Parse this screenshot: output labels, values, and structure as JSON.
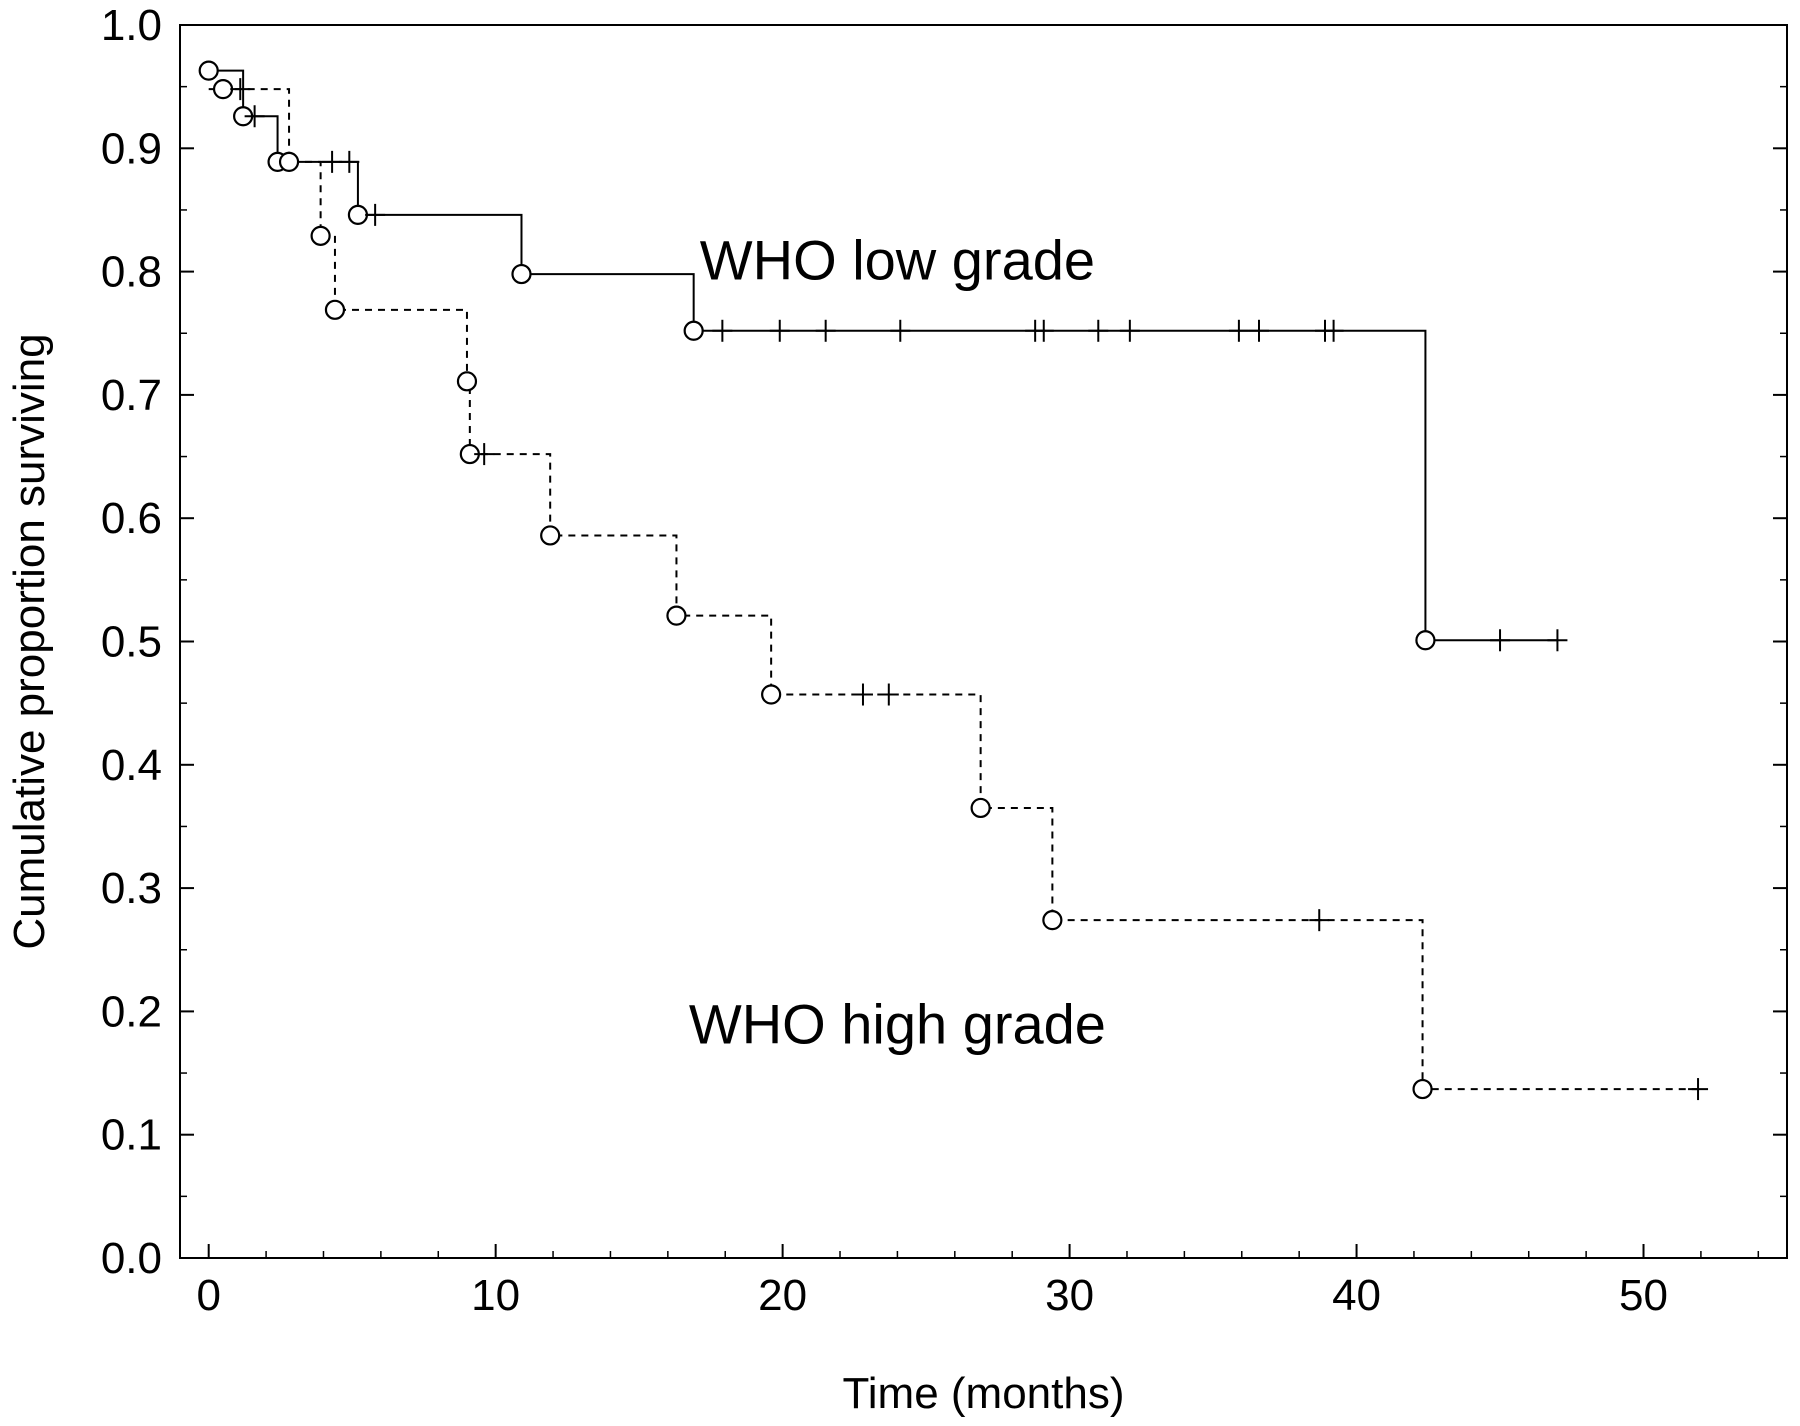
{
  "chart_data": {
    "type": "line",
    "step": true,
    "xlabel": "Time (months)",
    "ylabel": "Cumulative proportion surviving",
    "xlim": [
      -1,
      55
    ],
    "ylim": [
      0.0,
      1.0
    ],
    "x_ticks": [
      0,
      10,
      20,
      30,
      40,
      50
    ],
    "x_tick_labels": [
      "0",
      "10",
      "20",
      "30",
      "40",
      "50"
    ],
    "x_minor_step": 2,
    "y_ticks": [
      0.0,
      0.1,
      0.2,
      0.3,
      0.4,
      0.5,
      0.6,
      0.7,
      0.8,
      0.9,
      1.0
    ],
    "y_tick_labels": [
      "0.0",
      "0.1",
      "0.2",
      "0.3",
      "0.4",
      "0.5",
      "0.6",
      "0.7",
      "0.8",
      "0.9",
      "1.0"
    ],
    "y_minor_step": 0.05,
    "grid": false,
    "annotations": [
      {
        "text": "WHO low grade",
        "x": 24,
        "y": 0.81
      },
      {
        "text": "WHO high grade",
        "x": 24,
        "y": 0.19
      }
    ],
    "series": [
      {
        "line_style": "solid",
        "start_y": 0.963,
        "steps": [
          {
            "x": 1.2,
            "y": 0.926
          },
          {
            "x": 2.4,
            "y": 0.889
          },
          {
            "x": 5.2,
            "y": 0.846
          },
          {
            "x": 10.9,
            "y": 0.798
          },
          {
            "x": 16.9,
            "y": 0.752
          },
          {
            "x": 42.4,
            "y": 0.501
          }
        ],
        "end_x": 47.0,
        "events": [
          {
            "x": 0.0,
            "y": 0.963
          },
          {
            "x": 1.2,
            "y": 0.926
          },
          {
            "x": 2.4,
            "y": 0.889
          },
          {
            "x": 5.2,
            "y": 0.846
          },
          {
            "x": 10.9,
            "y": 0.798
          },
          {
            "x": 16.9,
            "y": 0.752
          },
          {
            "x": 42.4,
            "y": 0.501
          }
        ],
        "censored": [
          {
            "x": 1.6,
            "y": 0.926
          },
          {
            "x": 4.3,
            "y": 0.889
          },
          {
            "x": 4.9,
            "y": 0.889
          },
          {
            "x": 5.8,
            "y": 0.846
          },
          {
            "x": 17.9,
            "y": 0.752
          },
          {
            "x": 19.9,
            "y": 0.752
          },
          {
            "x": 21.5,
            "y": 0.752
          },
          {
            "x": 24.1,
            "y": 0.752
          },
          {
            "x": 28.8,
            "y": 0.752
          },
          {
            "x": 29.1,
            "y": 0.752
          },
          {
            "x": 31.0,
            "y": 0.752
          },
          {
            "x": 32.1,
            "y": 0.752
          },
          {
            "x": 35.9,
            "y": 0.752
          },
          {
            "x": 36.6,
            "y": 0.752
          },
          {
            "x": 38.9,
            "y": 0.752
          },
          {
            "x": 39.2,
            "y": 0.752
          },
          {
            "x": 45.0,
            "y": 0.501
          },
          {
            "x": 47.0,
            "y": 0.501
          }
        ]
      },
      {
        "line_style": "dashed",
        "start_y": 0.948,
        "steps": [
          {
            "x": 2.8,
            "y": 0.889
          },
          {
            "x": 3.9,
            "y": 0.829
          },
          {
            "x": 4.4,
            "y": 0.769
          },
          {
            "x": 9.0,
            "y": 0.711
          },
          {
            "x": 9.1,
            "y": 0.652
          },
          {
            "x": 11.9,
            "y": 0.586
          },
          {
            "x": 16.3,
            "y": 0.521
          },
          {
            "x": 19.6,
            "y": 0.457
          },
          {
            "x": 26.9,
            "y": 0.365
          },
          {
            "x": 29.4,
            "y": 0.274
          },
          {
            "x": 42.3,
            "y": 0.137
          }
        ],
        "end_x": 51.9,
        "events": [
          {
            "x": 0.5,
            "y": 0.948
          },
          {
            "x": 2.8,
            "y": 0.889
          },
          {
            "x": 3.9,
            "y": 0.829
          },
          {
            "x": 4.4,
            "y": 0.769
          },
          {
            "x": 9.0,
            "y": 0.711
          },
          {
            "x": 9.1,
            "y": 0.652
          },
          {
            "x": 11.9,
            "y": 0.586
          },
          {
            "x": 16.3,
            "y": 0.521
          },
          {
            "x": 19.6,
            "y": 0.457
          },
          {
            "x": 26.9,
            "y": 0.365
          },
          {
            "x": 29.4,
            "y": 0.274
          },
          {
            "x": 42.3,
            "y": 0.137
          }
        ],
        "censored": [
          {
            "x": 1.1,
            "y": 0.948
          },
          {
            "x": 9.6,
            "y": 0.652
          },
          {
            "x": 22.8,
            "y": 0.457
          },
          {
            "x": 23.7,
            "y": 0.457
          },
          {
            "x": 38.7,
            "y": 0.274
          },
          {
            "x": 51.9,
            "y": 0.137
          }
        ]
      }
    ]
  }
}
